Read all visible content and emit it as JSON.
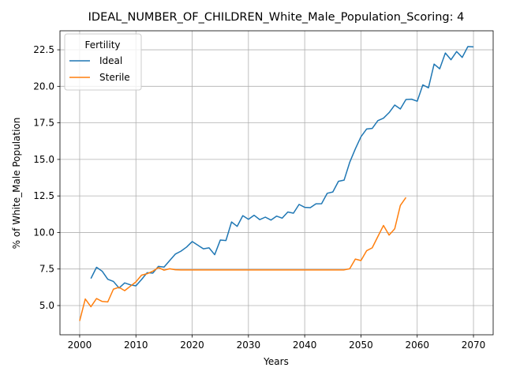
{
  "chart_data": {
    "type": "line",
    "title": "IDEAL_NUMBER_OF_CHILDREN_White_Male_Population_Scoring: 4",
    "xlabel": "Years",
    "ylabel": "% of White_Male Population",
    "xlim": [
      1996.5,
      2073.5
    ],
    "ylim": [
      3.0,
      23.8
    ],
    "xticks": [
      2000,
      2010,
      2020,
      2030,
      2040,
      2050,
      2060,
      2070
    ],
    "yticks": [
      5.0,
      7.5,
      10.0,
      12.5,
      15.0,
      17.5,
      20.0,
      22.5
    ],
    "xtick_labels": [
      "2000",
      "2010",
      "2020",
      "2030",
      "2040",
      "2050",
      "2060",
      "2070"
    ],
    "ytick_labels": [
      "5.0",
      "7.5",
      "10.0",
      "12.5",
      "15.0",
      "17.5",
      "20.0",
      "22.5"
    ],
    "grid": true,
    "legend": {
      "title": "Fertility",
      "placement": "top-left"
    },
    "series": [
      {
        "name": "Ideal",
        "color": "#1f77b4",
        "x": [
          2002,
          2003,
          2004,
          2005,
          2006,
          2007,
          2008,
          2009,
          2010,
          2011,
          2012,
          2013,
          2014,
          2015,
          2016,
          2017,
          2018,
          2019,
          2020,
          2021,
          2022,
          2023,
          2024,
          2025,
          2026,
          2027,
          2028,
          2029,
          2030,
          2031,
          2032,
          2033,
          2034,
          2035,
          2036,
          2037,
          2038,
          2039,
          2040,
          2041,
          2042,
          2043,
          2044,
          2045,
          2046,
          2047,
          2048,
          2049,
          2050,
          2051,
          2052,
          2053,
          2054,
          2055,
          2056,
          2057,
          2058,
          2059,
          2060,
          2061,
          2062,
          2063,
          2064,
          2065,
          2066,
          2067,
          2068,
          2069,
          2070
        ],
        "y": [
          6.85,
          7.62,
          7.35,
          6.8,
          6.65,
          6.2,
          6.55,
          6.42,
          6.35,
          6.78,
          7.25,
          7.22,
          7.68,
          7.63,
          8.08,
          8.52,
          8.72,
          9.0,
          9.38,
          9.13,
          8.88,
          8.95,
          8.48,
          9.48,
          9.45,
          10.72,
          10.42,
          11.15,
          10.9,
          11.18,
          10.88,
          11.05,
          10.85,
          11.12,
          10.98,
          11.4,
          11.32,
          11.92,
          11.72,
          11.7,
          11.96,
          11.97,
          12.68,
          12.77,
          13.5,
          13.58,
          14.8,
          15.72,
          16.55,
          17.08,
          17.12,
          17.65,
          17.82,
          18.2,
          18.72,
          18.45,
          19.1,
          19.12,
          18.98,
          20.1,
          19.9,
          21.52,
          21.2,
          22.28,
          21.82,
          22.38,
          21.98,
          22.72,
          22.7
        ]
      },
      {
        "name": "Sterile",
        "color": "#ff7f0e",
        "x": [
          2000,
          2001,
          2002,
          2003,
          2004,
          2005,
          2006,
          2007,
          2008,
          2009,
          2010,
          2011,
          2012,
          2013,
          2014,
          2015,
          2016,
          2017,
          2018,
          2019,
          2020,
          2021,
          2022,
          2023,
          2024,
          2025,
          2026,
          2027,
          2028,
          2029,
          2030,
          2031,
          2032,
          2033,
          2034,
          2035,
          2036,
          2037,
          2038,
          2039,
          2040,
          2041,
          2042,
          2043,
          2044,
          2045,
          2046,
          2047,
          2048,
          2049,
          2050,
          2051,
          2052,
          2053,
          2054,
          2055,
          2056,
          2057,
          2058
        ],
        "y": [
          3.95,
          5.45,
          4.92,
          5.48,
          5.28,
          5.25,
          6.12,
          6.25,
          6.02,
          6.32,
          6.62,
          7.08,
          7.18,
          7.35,
          7.6,
          7.42,
          7.52,
          7.45,
          7.44,
          7.44,
          7.44,
          7.44,
          7.44,
          7.44,
          7.44,
          7.44,
          7.44,
          7.44,
          7.44,
          7.44,
          7.44,
          7.44,
          7.44,
          7.44,
          7.44,
          7.44,
          7.44,
          7.44,
          7.44,
          7.44,
          7.44,
          7.44,
          7.44,
          7.44,
          7.44,
          7.44,
          7.44,
          7.44,
          7.52,
          8.18,
          8.08,
          8.75,
          8.95,
          9.72,
          10.48,
          9.82,
          10.25,
          11.85,
          12.4
        ]
      }
    ]
  }
}
